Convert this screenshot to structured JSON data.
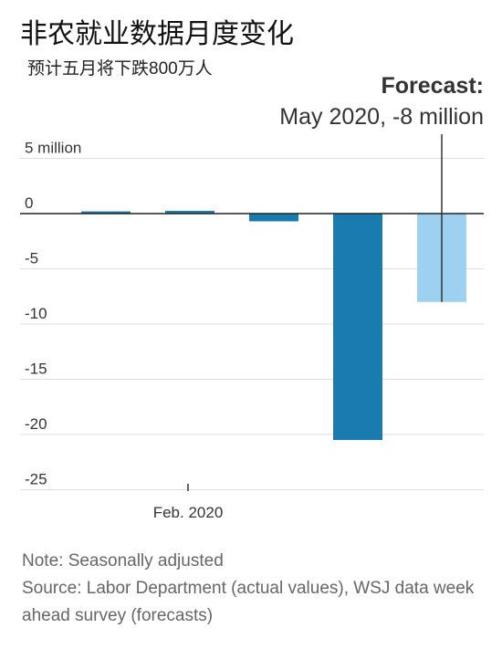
{
  "header": {
    "title": "非农就业数据月度变化",
    "subtitle": "预计五月将下跌800万人"
  },
  "forecast": {
    "heading": "Forecast:",
    "label": "May 2020, -8 million",
    "value": -8
  },
  "footer": {
    "note": "Note: Seasonally adjusted",
    "source": "Source: Labor Department (actual values), WSJ data week ahead survey (forecasts)"
  },
  "chart_data": {
    "type": "bar",
    "categories": [
      "",
      "Feb. 2020",
      "",
      "",
      ""
    ],
    "x_tick_labels": [
      "Feb. 2020"
    ],
    "y_ticks": [
      {
        "value": 5,
        "label": "5 million"
      },
      {
        "value": 0,
        "label": "0"
      },
      {
        "value": -5,
        "label": "-5"
      },
      {
        "value": -10,
        "label": "-10"
      },
      {
        "value": -15,
        "label": "-15"
      },
      {
        "value": -20,
        "label": "-20"
      },
      {
        "value": -25,
        "label": "-25"
      }
    ],
    "ylim": [
      -25,
      5
    ],
    "values": [
      0.2,
      0.25,
      -0.7,
      -20.5,
      -8
    ],
    "kind": [
      "actual",
      "actual",
      "actual",
      "actual",
      "forecast"
    ],
    "colors": {
      "actual": "#1a7bb0",
      "forecast": "#9ed0ef",
      "grid": "#dddddd",
      "zero": "#222222"
    },
    "grid": true
  }
}
